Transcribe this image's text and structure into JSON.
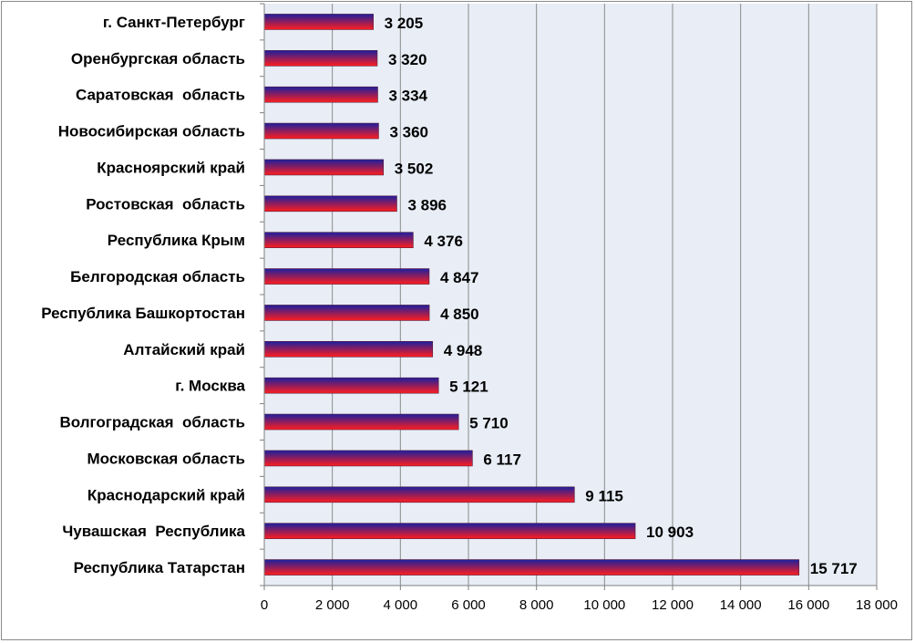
{
  "chart_data": {
    "type": "bar",
    "orientation": "horizontal",
    "categories": [
      "г. Санкт-Петербург",
      "Оренбургская область",
      "Саратовская  область",
      "Новосибирская область",
      "Красноярский край",
      "Ростовская  область",
      "Республика Крым",
      "Белгородская область",
      "Республика Башкортостан",
      "Алтайский край",
      "г. Москва",
      "Волгоградская  область",
      "Московская область",
      "Краснодарский край",
      "Чувашская  Республика",
      "Республика Татарстан"
    ],
    "values": [
      3205,
      3320,
      3334,
      3360,
      3502,
      3896,
      4376,
      4847,
      4850,
      4948,
      5121,
      5710,
      6117,
      9115,
      10903,
      15717
    ],
    "value_labels": [
      "3 205",
      "3 320",
      "3 334",
      "3 360",
      "3 502",
      "3 896",
      "4 376",
      "4 847",
      "4 850",
      "4 948",
      "5 121",
      "5 710",
      "6 117",
      "9 115",
      "10 903",
      "15 717"
    ],
    "x_ticks": [
      0,
      2000,
      4000,
      6000,
      8000,
      10000,
      12000,
      14000,
      16000,
      18000
    ],
    "x_tick_labels": [
      "0",
      "2 000",
      "4 000",
      "6 000",
      "8 000",
      "10 000",
      "12 000",
      "14 000",
      "16 000",
      "18 000"
    ],
    "xlim": [
      0,
      18000
    ],
    "title": "",
    "xlabel": "",
    "ylabel": "",
    "grid": "vertical",
    "legend": "none",
    "colors": {
      "plot_background": "#e8edf6",
      "gridline": "#8c8c8c",
      "bar_top": "#1c1f9e",
      "bar_bottom": "#ff1e1e"
    }
  }
}
